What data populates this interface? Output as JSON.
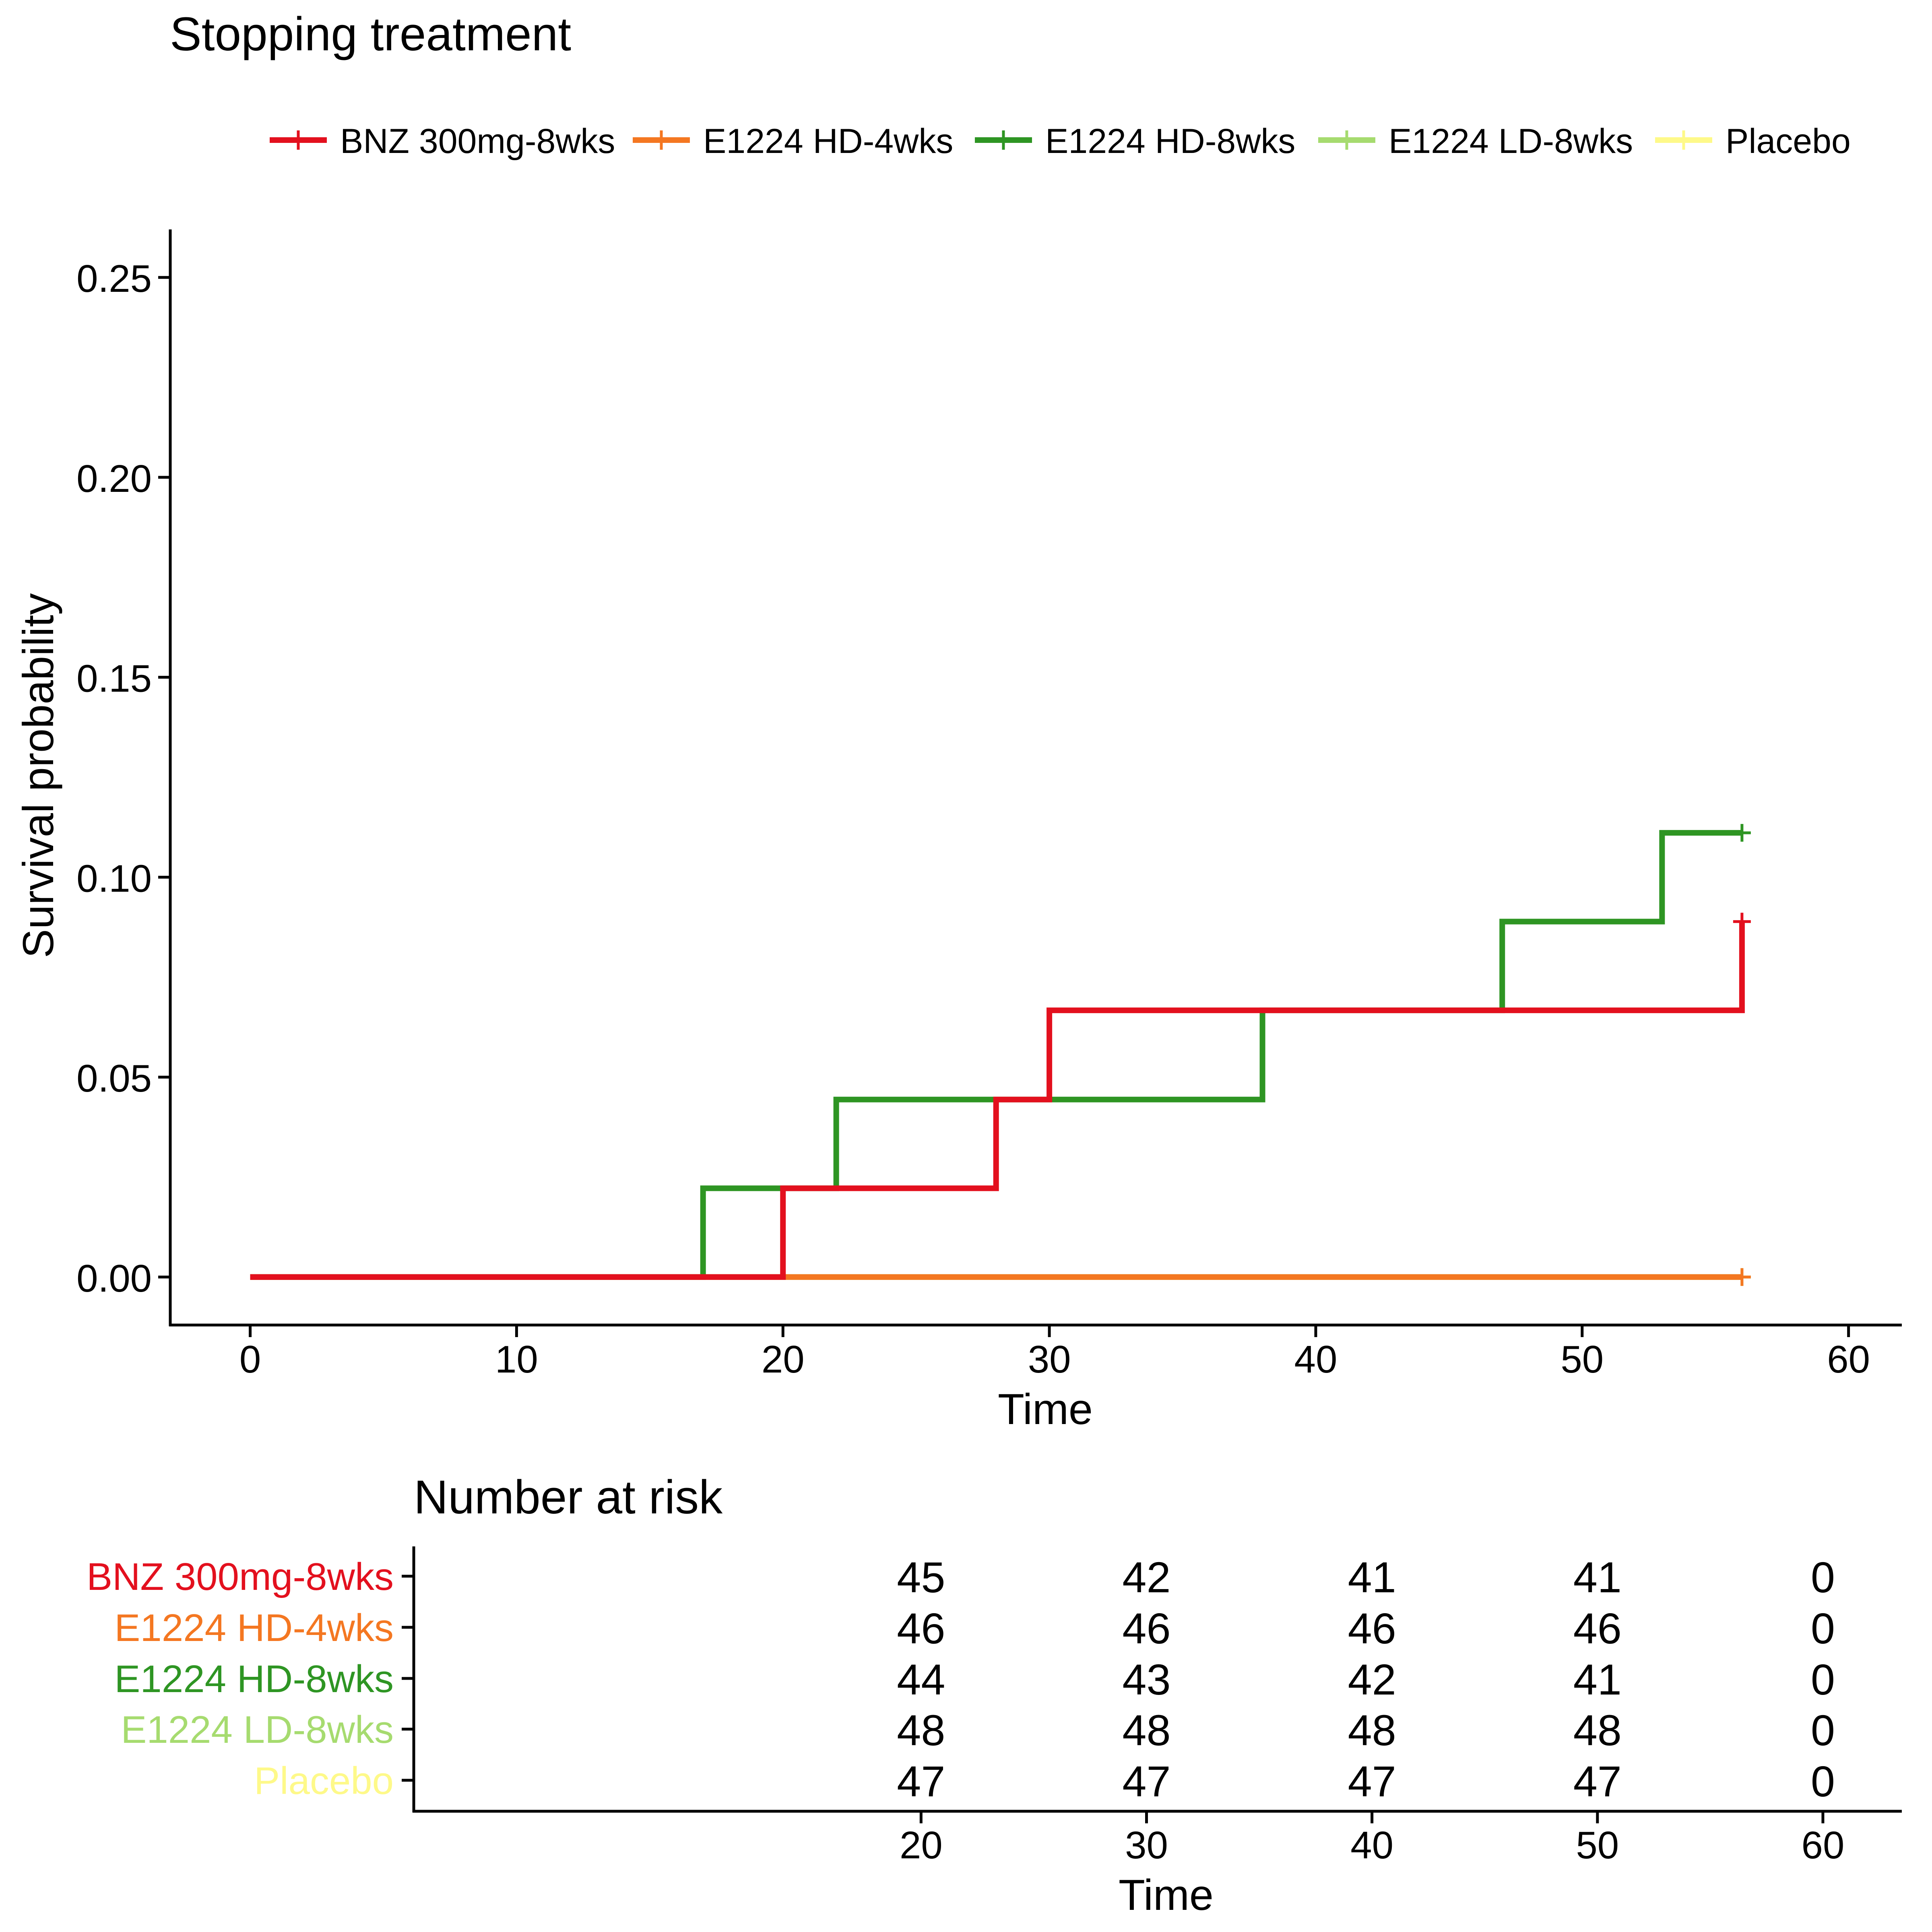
{
  "chart_data": [
    {
      "type": "line",
      "subtype": "step",
      "title": "Stopping treatment",
      "xlabel": "Time",
      "ylabel": "Survival probability",
      "xlim": [
        -3,
        62
      ],
      "ylim": [
        -0.012,
        0.262
      ],
      "xticks": [
        "0",
        "10",
        "20",
        "30",
        "40",
        "50",
        "60"
      ],
      "xtick_values": [
        0,
        10,
        20,
        30,
        40,
        50,
        60
      ],
      "yticks": [
        "0.00",
        "0.05",
        "0.10",
        "0.15",
        "0.20",
        "0.25"
      ],
      "ytick_values": [
        0,
        0.05,
        0.1,
        0.15,
        0.2,
        0.25
      ],
      "grid": false,
      "legend_position": "top",
      "series": [
        {
          "name": "BNZ 300mg-8wks",
          "color": "#e3101e",
          "x": [
            0,
            20,
            28,
            30,
            56
          ],
          "y": [
            0,
            0.0222,
            0.0444,
            0.0667,
            0.0889
          ],
          "censor_x": [
            56
          ],
          "censor_y": [
            0.0889
          ]
        },
        {
          "name": "E1224 HD-4wks",
          "color": "#f47721",
          "x": [
            0,
            56
          ],
          "y": [
            0,
            0
          ],
          "censor_x": [
            56
          ],
          "censor_y": [
            0
          ]
        },
        {
          "name": "E1224 HD-8wks",
          "color": "#2e9523",
          "x": [
            0,
            17,
            22,
            38,
            47,
            53,
            56
          ],
          "y": [
            0,
            0.0222,
            0.0444,
            0.0667,
            0.0889,
            0.1111,
            0.1111
          ],
          "censor_x": [
            56
          ],
          "censor_y": [
            0.1111
          ]
        },
        {
          "name": "E1224 LD-8wks",
          "color": "#a6db6f",
          "x": [
            0,
            56
          ],
          "y": [
            0,
            0
          ],
          "censor_x": [
            56
          ],
          "censor_y": [
            0
          ]
        },
        {
          "name": "Placebo",
          "color": "#fef989",
          "x": [
            0,
            56
          ],
          "y": [
            0,
            0
          ],
          "censor_x": [
            56
          ],
          "censor_y": [
            0
          ]
        }
      ]
    },
    {
      "type": "table",
      "title": "Number at risk",
      "xlabel": "Time",
      "xlim": [
        -2.5,
        63.5
      ],
      "times": [
        "20",
        "30",
        "40",
        "50",
        "60"
      ],
      "time_values": [
        20,
        30,
        40,
        50,
        60
      ],
      "rows": [
        {
          "name": "BNZ 300mg-8wks",
          "color": "#e3101e",
          "values": [
            "45",
            "42",
            "41",
            "41",
            "0"
          ]
        },
        {
          "name": "E1224 HD-4wks",
          "color": "#f47721",
          "values": [
            "46",
            "46",
            "46",
            "46",
            "0"
          ]
        },
        {
          "name": "E1224 HD-8wks",
          "color": "#2e9523",
          "values": [
            "44",
            "43",
            "42",
            "41",
            "0"
          ]
        },
        {
          "name": "E1224 LD-8wks",
          "color": "#a6db6f",
          "values": [
            "48",
            "48",
            "48",
            "48",
            "0"
          ]
        },
        {
          "name": "Placebo",
          "color": "#fef989",
          "values": [
            "47",
            "47",
            "47",
            "47",
            "0"
          ]
        }
      ]
    }
  ]
}
